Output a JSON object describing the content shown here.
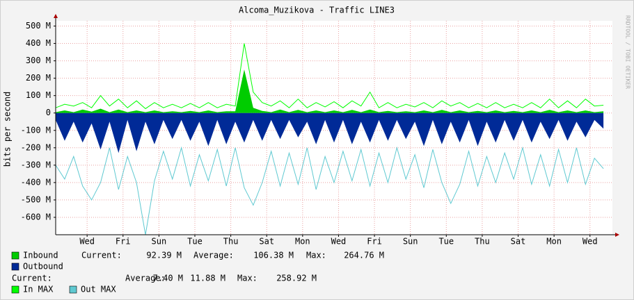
{
  "chart_data": {
    "type": "line",
    "title": "Alcoma_Muzikova - Traffic LINE3",
    "y_label": "bits per second",
    "watermark": "RRDTOOL / TOBI OETIKER",
    "xlim": [
      0,
      31
    ],
    "ylim": [
      -700,
      530
    ],
    "grid": true,
    "xticks": [
      {
        "value": 1.75,
        "label": "Wed"
      },
      {
        "value": 3.75,
        "label": "Fri"
      },
      {
        "value": 5.75,
        "label": "Sun"
      },
      {
        "value": 7.75,
        "label": "Tue"
      },
      {
        "value": 9.75,
        "label": "Thu"
      },
      {
        "value": 11.75,
        "label": "Sat"
      },
      {
        "value": 13.75,
        "label": "Mon"
      },
      {
        "value": 15.75,
        "label": "Wed"
      },
      {
        "value": 17.75,
        "label": "Fri"
      },
      {
        "value": 19.75,
        "label": "Sun"
      },
      {
        "value": 21.75,
        "label": "Tue"
      },
      {
        "value": 23.75,
        "label": "Thu"
      },
      {
        "value": 25.75,
        "label": "Sat"
      },
      {
        "value": 27.75,
        "label": "Mon"
      },
      {
        "value": 29.75,
        "label": "Wed"
      }
    ],
    "yticks": [
      {
        "value": 500,
        "label": "500 M"
      },
      {
        "value": 400,
        "label": "400 M"
      },
      {
        "value": 300,
        "label": "300 M"
      },
      {
        "value": 200,
        "label": "200 M"
      },
      {
        "value": 100,
        "label": "100 M"
      },
      0,
      {
        "value": -100,
        "label": "-100 M"
      },
      {
        "value": -200,
        "label": "-200 M"
      },
      {
        "value": -300,
        "label": "-300 M"
      },
      {
        "value": -400,
        "label": "-400 M"
      },
      {
        "value": -500,
        "label": "-500 M"
      },
      {
        "value": -600,
        "label": "-600 M"
      }
    ],
    "x": [
      0,
      0.5,
      1,
      1.5,
      2,
      2.5,
      3,
      3.5,
      4,
      4.5,
      5,
      5.5,
      6,
      6.5,
      7,
      7.5,
      8,
      8.5,
      9,
      9.5,
      10,
      10.5,
      11,
      11.5,
      12,
      12.5,
      13,
      13.5,
      14,
      14.5,
      15,
      15.5,
      16,
      16.5,
      17,
      17.5,
      18,
      18.5,
      19,
      19.5,
      20,
      20.5,
      21,
      21.5,
      22,
      22.5,
      23,
      23.5,
      24,
      24.5,
      25,
      25.5,
      26,
      26.5,
      27,
      27.5,
      28,
      28.5,
      29,
      29.5,
      30,
      30.5
    ],
    "series": [
      {
        "name": "Inbound",
        "color": "#00cc00",
        "style": "area",
        "values": [
          5,
          15,
          5,
          20,
          8,
          25,
          5,
          20,
          5,
          15,
          5,
          15,
          5,
          10,
          5,
          12,
          5,
          15,
          5,
          10,
          10,
          250,
          30,
          12,
          5,
          20,
          5,
          18,
          5,
          15,
          5,
          15,
          5,
          18,
          5,
          20,
          5,
          12,
          5,
          10,
          5,
          15,
          5,
          18,
          5,
          15,
          5,
          12,
          5,
          15,
          5,
          12,
          5,
          15,
          5,
          18,
          5,
          15,
          5,
          15,
          5,
          10
        ]
      },
      {
        "name": "Outbound",
        "color": "#002a97",
        "style": "area",
        "values": [
          -40,
          -160,
          -50,
          -170,
          -60,
          -210,
          -50,
          -230,
          -40,
          -220,
          -50,
          -180,
          -40,
          -150,
          -40,
          -160,
          -50,
          -190,
          -40,
          -180,
          -50,
          -170,
          -40,
          -160,
          -40,
          -150,
          -40,
          -140,
          -50,
          -180,
          -40,
          -170,
          -40,
          -180,
          -50,
          -170,
          -40,
          -160,
          -40,
          -150,
          -50,
          -190,
          -40,
          -180,
          -50,
          -170,
          -40,
          -190,
          -50,
          -170,
          -40,
          -160,
          -40,
          -170,
          -50,
          -150,
          -40,
          -160,
          -50,
          -140,
          -40,
          -90
        ]
      },
      {
        "name": "In MAX",
        "color": "#00ff00",
        "style": "line",
        "values": [
          30,
          50,
          40,
          60,
          30,
          100,
          40,
          80,
          30,
          70,
          25,
          60,
          30,
          50,
          30,
          55,
          30,
          60,
          30,
          50,
          40,
          400,
          120,
          60,
          40,
          70,
          30,
          80,
          30,
          60,
          35,
          65,
          30,
          70,
          40,
          120,
          30,
          60,
          30,
          50,
          35,
          60,
          30,
          70,
          40,
          60,
          30,
          55,
          30,
          60,
          30,
          50,
          30,
          60,
          30,
          80,
          30,
          70,
          30,
          80,
          40,
          45
        ]
      },
      {
        "name": "Out MAX",
        "color": "#5fc9d1",
        "style": "line",
        "values": [
          -300,
          -380,
          -250,
          -420,
          -500,
          -400,
          -200,
          -440,
          -250,
          -400,
          -700,
          -390,
          -220,
          -380,
          -200,
          -420,
          -240,
          -390,
          -210,
          -420,
          -200,
          -430,
          -530,
          -400,
          -220,
          -420,
          -230,
          -410,
          -200,
          -440,
          -250,
          -400,
          -220,
          -390,
          -210,
          -420,
          -230,
          -400,
          -200,
          -380,
          -240,
          -430,
          -210,
          -400,
          -520,
          -410,
          -220,
          -420,
          -250,
          -400,
          -230,
          -380,
          -200,
          -410,
          -240,
          -420,
          -210,
          -400,
          -200,
          -410,
          -260,
          -320
        ]
      }
    ],
    "stats": [
      {
        "labels": [
          "Current:",
          "Average:",
          "Max:"
        ],
        "values": [
          "92.39 M",
          "106.38 M",
          "264.76 M"
        ]
      },
      {
        "labels": [
          "Current:",
          "Average:",
          "Max:"
        ],
        "values": [
          "7.40 M",
          "11.88 M",
          "258.92 M"
        ]
      }
    ]
  }
}
